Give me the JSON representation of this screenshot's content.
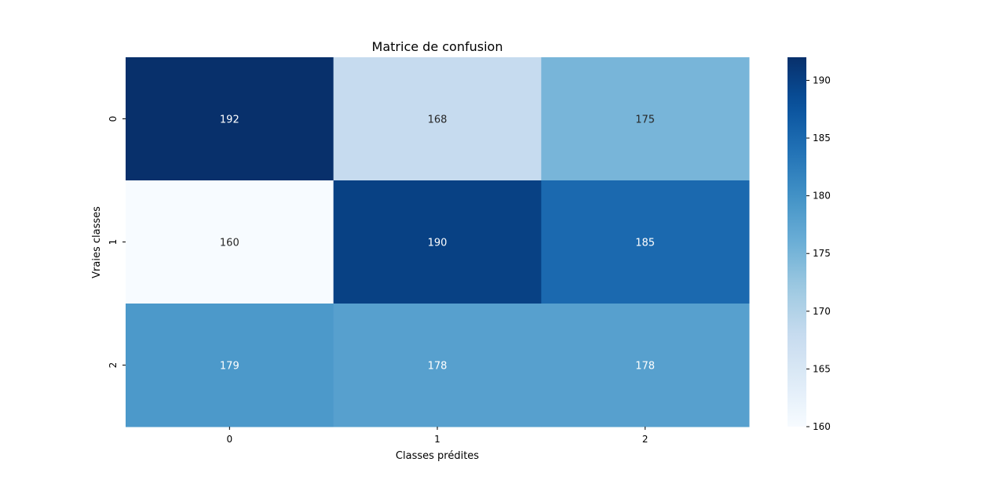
{
  "chart_data": {
    "type": "heatmap",
    "title": "Matrice de confusion",
    "xlabel": "Classes prédites",
    "ylabel": "Vraies classes",
    "x_categories": [
      "0",
      "1",
      "2"
    ],
    "y_categories": [
      "0",
      "1",
      "2"
    ],
    "values": [
      [
        192,
        168,
        175
      ],
      [
        160,
        190,
        185
      ],
      [
        179,
        178,
        178
      ]
    ],
    "colormap": "Blues",
    "colorbar": {
      "min": 160,
      "max": 192,
      "ticks": [
        160,
        165,
        170,
        175,
        180,
        185,
        190
      ]
    },
    "annotations": true,
    "grid": false
  }
}
